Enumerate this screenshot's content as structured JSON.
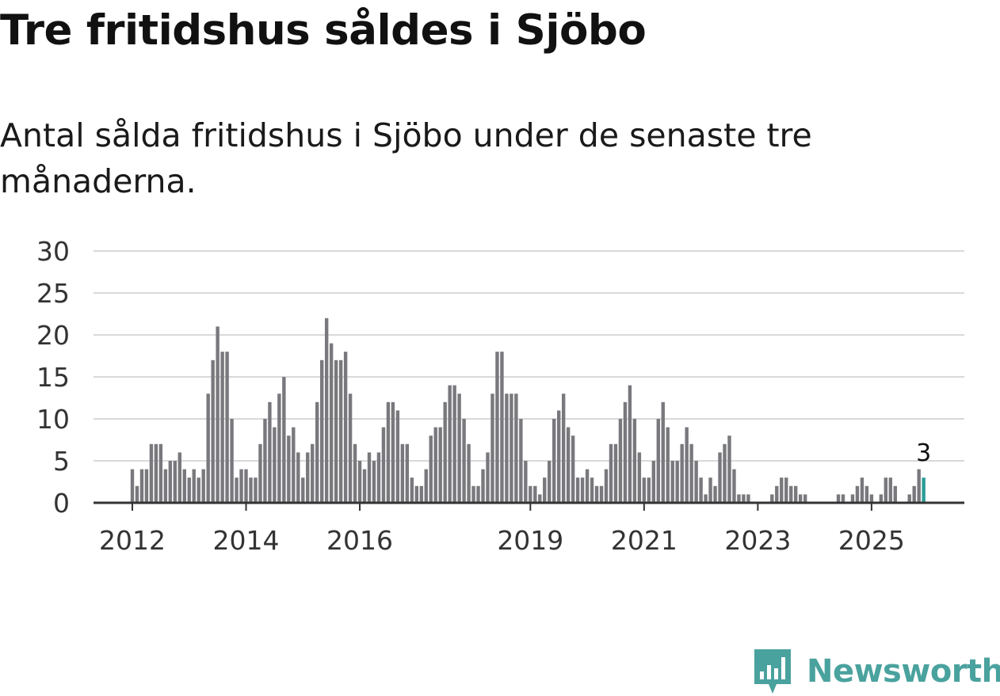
{
  "header": {
    "title": "Tre fritidshus såldes i Sjöbo",
    "subtitle": "Antal sålda fritidshus i Sjöbo under de senaste tre månaderna."
  },
  "brand": {
    "name": "Newsworthy",
    "color": "#4aa29e"
  },
  "chart_data": {
    "type": "bar",
    "start": "2012-01",
    "x_tick_labels": [
      "2012",
      "2014",
      "2016",
      "2019",
      "2021",
      "2023",
      "2025"
    ],
    "values": [
      4,
      2,
      4,
      4,
      7,
      7,
      7,
      4,
      5,
      5,
      6,
      4,
      3,
      4,
      3,
      4,
      13,
      17,
      21,
      18,
      18,
      10,
      3,
      4,
      4,
      3,
      3,
      7,
      10,
      12,
      9,
      13,
      15,
      8,
      9,
      6,
      3,
      6,
      7,
      12,
      17,
      22,
      19,
      17,
      17,
      18,
      13,
      7,
      5,
      4,
      6,
      5,
      6,
      9,
      12,
      12,
      11,
      7,
      7,
      3,
      2,
      2,
      4,
      8,
      9,
      9,
      12,
      14,
      14,
      13,
      10,
      7,
      2,
      2,
      4,
      6,
      13,
      18,
      18,
      13,
      13,
      13,
      10,
      5,
      2,
      2,
      1,
      3,
      5,
      10,
      11,
      13,
      9,
      8,
      3,
      3,
      4,
      3,
      2,
      2,
      4,
      7,
      7,
      10,
      12,
      14,
      10,
      6,
      3,
      3,
      5,
      10,
      12,
      9,
      5,
      5,
      7,
      9,
      7,
      5,
      3,
      1,
      3,
      2,
      6,
      7,
      8,
      4,
      1,
      1,
      1,
      0,
      0,
      0,
      0,
      1,
      2,
      3,
      3,
      2,
      2,
      1,
      1,
      0,
      0,
      0,
      0,
      0,
      0,
      1,
      1,
      0,
      1,
      2,
      3,
      2,
      1,
      0,
      1,
      3,
      3,
      2,
      0,
      0,
      1,
      2,
      4,
      3
    ],
    "y_ticks": [
      0,
      5,
      10,
      15,
      20,
      25,
      30
    ],
    "ylim": [
      0,
      30
    ],
    "highlight_label": "3",
    "colors": {
      "bar": "#79787d",
      "highlight": "#2a9d96",
      "grid": "#d9d9d9",
      "axis": "#333333"
    }
  }
}
